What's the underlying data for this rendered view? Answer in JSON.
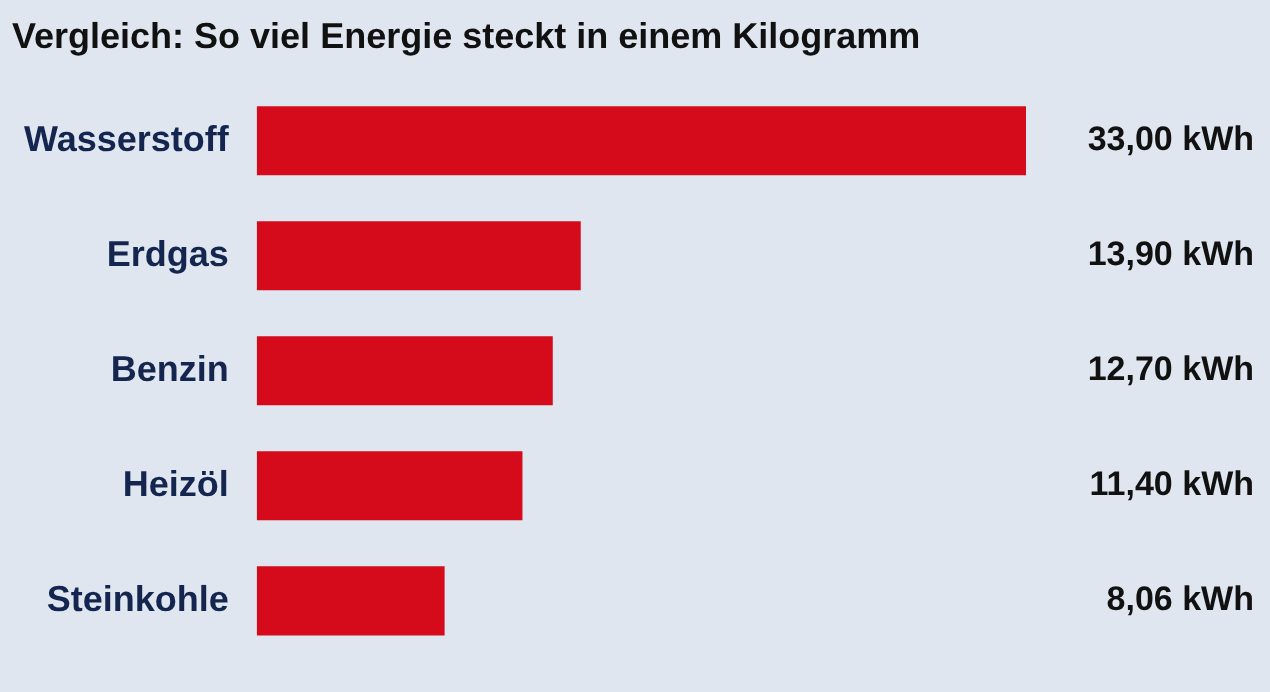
{
  "chart_data": {
    "type": "bar",
    "orientation": "horizontal",
    "title": "Vergleich: So viel Energie steckt in einem Kilogramm",
    "categories": [
      "Wasserstoff",
      "Erdgas",
      "Benzin",
      "Heizöl",
      "Steinkohle"
    ],
    "values": [
      33.0,
      13.9,
      12.7,
      11.4,
      8.06
    ],
    "value_labels": [
      "33,00 kWh",
      "13,90 kWh",
      "12,70 kWh",
      "11,40 kWh",
      "8,06 kWh"
    ],
    "color": "#d50b1c"
  }
}
